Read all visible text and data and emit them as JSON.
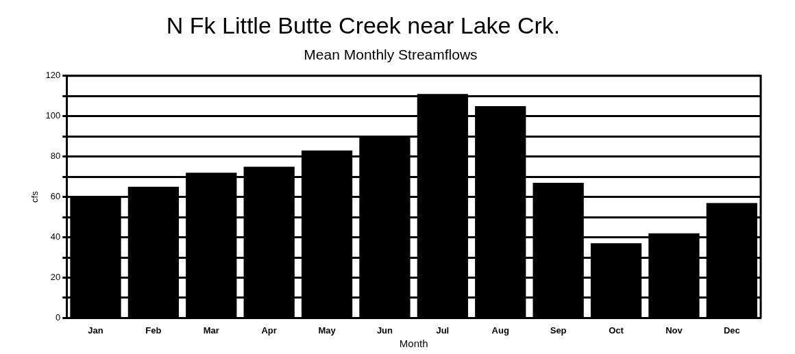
{
  "chart_data": {
    "type": "bar",
    "title": "N Fk Little Butte Creek near Lake Crk.",
    "subtitle": "Mean Monthly Streamflows",
    "xlabel": "Month",
    "ylabel": "cfs",
    "categories": [
      "Jan",
      "Feb",
      "Mar",
      "Apr",
      "May",
      "Jun",
      "Jul",
      "Aug",
      "Sep",
      "Oct",
      "Nov",
      "Dec"
    ],
    "values": [
      60,
      65,
      72,
      75,
      83,
      90,
      111,
      105,
      67,
      37,
      42,
      57
    ],
    "color": "#000000",
    "ylim": [
      0,
      120
    ],
    "yticks": [
      0,
      {
        "value": 10,
        "label": null
      },
      20,
      {
        "value": 30,
        "label": null
      },
      40,
      {
        "value": 50,
        "label": null
      },
      60,
      {
        "value": 70,
        "label": null
      },
      80,
      {
        "value": 90,
        "label": null
      },
      100,
      {
        "value": 110,
        "label": null
      },
      120
    ],
    "grid": "y",
    "legend": false
  }
}
